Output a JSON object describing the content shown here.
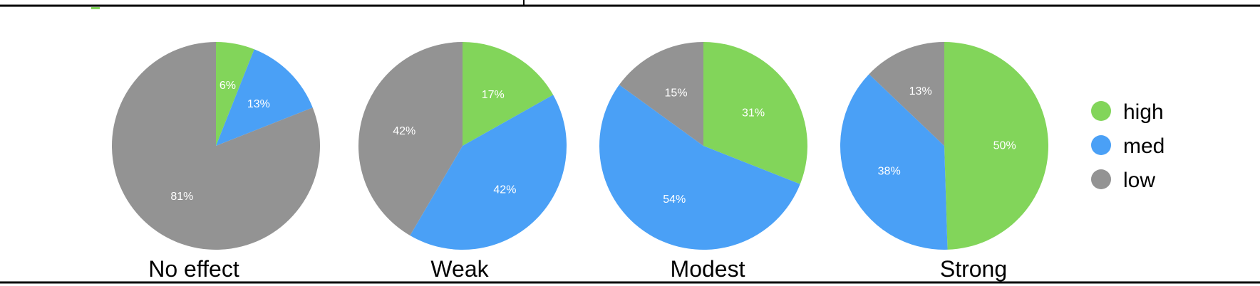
{
  "chart_data": {
    "type": "pie",
    "series": [
      {
        "name": "high",
        "color": "#82d55a"
      },
      {
        "name": "med",
        "color": "#4aa0f6"
      },
      {
        "name": "low",
        "color": "#939393"
      }
    ],
    "charts": [
      {
        "title": "No effect",
        "values": [
          6,
          13,
          81
        ],
        "labels": [
          "6%",
          "13%",
          "81%"
        ]
      },
      {
        "title": "Weak",
        "values": [
          17,
          42,
          42
        ],
        "labels": [
          "17%",
          "42%",
          "42%"
        ]
      },
      {
        "title": "Modest",
        "values": [
          31,
          54,
          15
        ],
        "labels": [
          "31%",
          "54%",
          "15%"
        ]
      },
      {
        "title": "Strong",
        "values": [
          50,
          38,
          13
        ],
        "labels": [
          "50%",
          "38%",
          "13%"
        ]
      }
    ],
    "legend_position": "right"
  }
}
